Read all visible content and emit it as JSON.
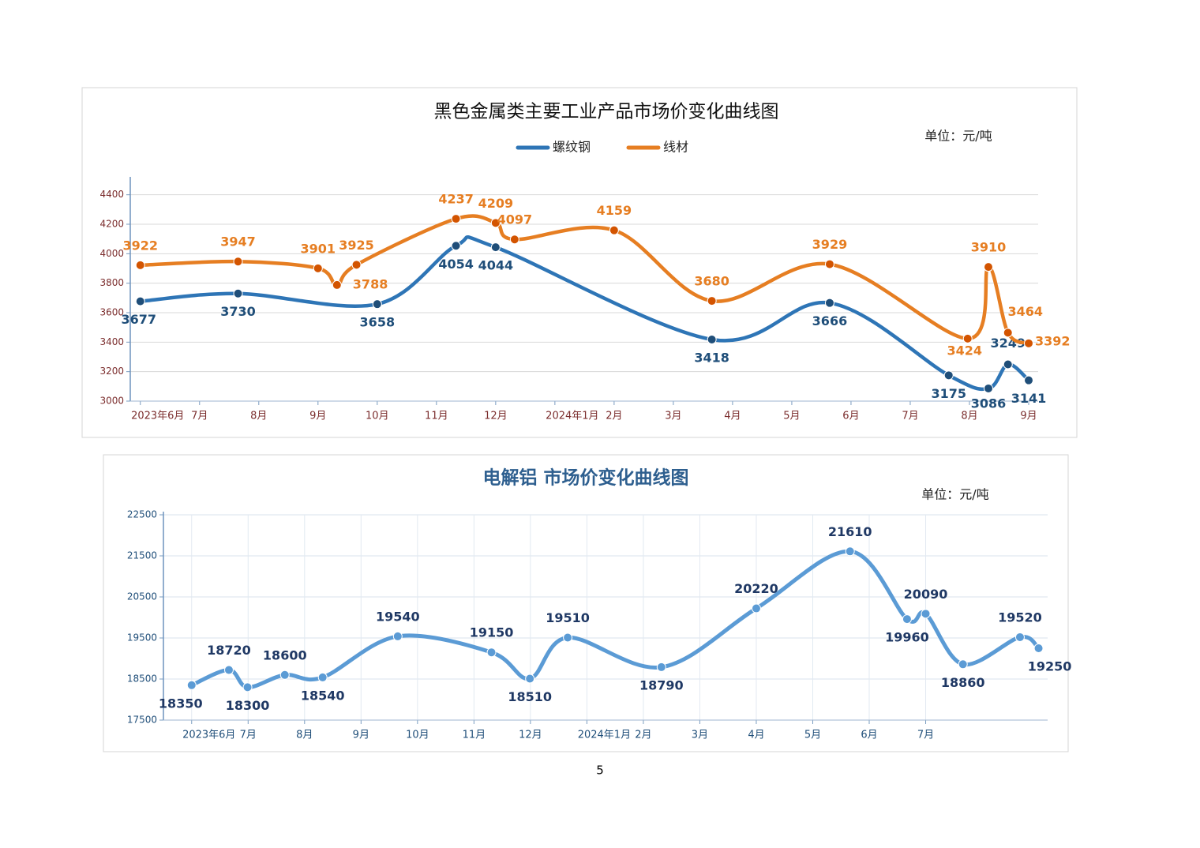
{
  "page_number": 5,
  "chart_data": [
    {
      "type": "line",
      "title": "黑色金属类主要工业产品市场价变化曲线图",
      "unit": "单位：元/吨",
      "legend": "top",
      "grid": true,
      "series": [
        {
          "name": "螺纹钢",
          "color": "#2e75b6",
          "x": [
            0,
            1.65,
            4,
            5.33,
            6,
            9.65,
            11.64,
            13.65,
            14.32,
            14.65,
            15
          ],
          "values": [
            3677,
            3730,
            3658,
            4054,
            4044,
            3418,
            3666,
            3175,
            3086,
            3249,
            3141
          ]
        },
        {
          "name": "线材",
          "color": "#e67e22",
          "x": [
            0,
            1.65,
            3,
            3.32,
            3.65,
            5.33,
            6,
            6.32,
            8,
            9.65,
            11.64,
            13.97,
            14.32,
            14.65,
            15
          ],
          "values": [
            3922,
            3947,
            3901,
            3788,
            3925,
            4237,
            4209,
            4097,
            4159,
            3680,
            3929,
            3424,
            3910,
            3464,
            3392
          ]
        }
      ],
      "xlim": [
        -0.17,
        15.16
      ],
      "xticks": [
        {
          "value": 0,
          "label": "2023年6月"
        },
        {
          "value": 1,
          "label": "7月"
        },
        {
          "value": 2,
          "label": "8月"
        },
        {
          "value": 3,
          "label": "9月"
        },
        {
          "value": 4,
          "label": "10月"
        },
        {
          "value": 5,
          "label": "11月"
        },
        {
          "value": 6,
          "label": "12月"
        },
        {
          "value": 7,
          "label": "2024年1月"
        },
        {
          "value": 8,
          "label": "2月"
        },
        {
          "value": 9,
          "label": "3月"
        },
        {
          "value": 10,
          "label": "4月"
        },
        {
          "value": 11,
          "label": "5月"
        },
        {
          "value": 12,
          "label": "6月"
        },
        {
          "value": 13,
          "label": "7月"
        },
        {
          "value": 14,
          "label": "8月"
        },
        {
          "value": 15,
          "label": "9月"
        }
      ],
      "ylim": [
        3000,
        4500
      ],
      "yticks": [
        3000,
        3200,
        3400,
        3600,
        3800,
        4000,
        4200,
        4400
      ]
    },
    {
      "type": "line",
      "title": "电解铝  市场价变化曲线图",
      "unit": "单位：元/吨",
      "grid": true,
      "color": "#5b9bd5",
      "x": [
        0,
        0.66,
        0.99,
        1.65,
        2.32,
        3.65,
        5.31,
        5.99,
        6.66,
        8.32,
        10,
        11.66,
        12.67,
        13,
        13.66,
        14.67,
        15
      ],
      "values": [
        18350,
        18720,
        18300,
        18600,
        18540,
        19540,
        19150,
        18510,
        19510,
        18790,
        20220,
        21610,
        19960,
        20090,
        18860,
        19520,
        19250
      ],
      "xlim": [
        -0.5,
        15.16
      ],
      "xticks": [
        {
          "value": 0,
          "label": "2023年6月"
        },
        {
          "value": 1,
          "label": "7月"
        },
        {
          "value": 2,
          "label": "8月"
        },
        {
          "value": 3,
          "label": "9月"
        },
        {
          "value": 4,
          "label": "10月"
        },
        {
          "value": 5,
          "label": "11月"
        },
        {
          "value": 6,
          "label": "12月"
        },
        {
          "value": 7,
          "label": "2024年1月"
        },
        {
          "value": 8,
          "label": "2月"
        },
        {
          "value": 9,
          "label": "3月"
        },
        {
          "value": 10,
          "label": "4月"
        },
        {
          "value": 11,
          "label": "5月"
        },
        {
          "value": 12,
          "label": "6月"
        },
        {
          "value": 13,
          "label": "7月"
        }
      ],
      "ylim": [
        17500,
        22500
      ],
      "yticks": [
        17500,
        18500,
        19500,
        20500,
        21500,
        22500
      ]
    }
  ]
}
